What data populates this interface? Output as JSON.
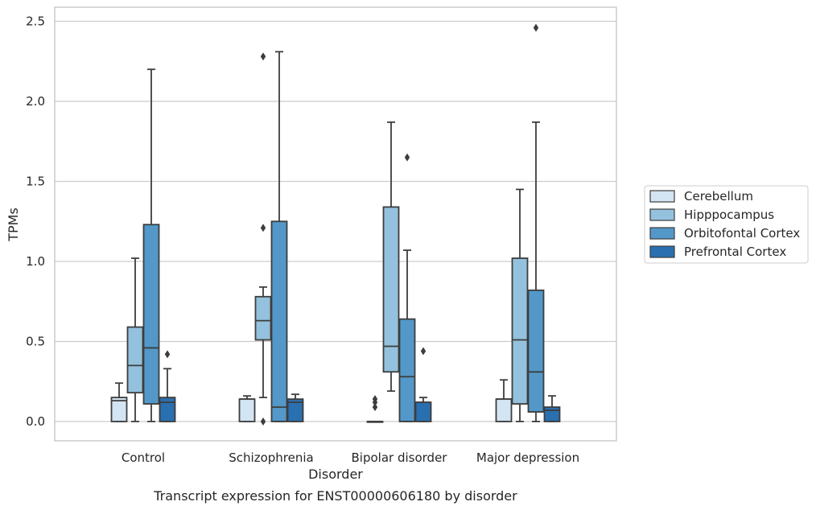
{
  "chart_data": {
    "type": "boxplot",
    "caption": "Transcript expression for ENST00000606180 by disorder",
    "xlabel": "Disorder",
    "ylabel": "TPMs",
    "ylim": [
      -0.12,
      2.59
    ],
    "yticks": [
      "0.0",
      "0.5",
      "1.0",
      "1.5",
      "2.0",
      "2.5"
    ],
    "categories": [
      "Control",
      "Schizophrenia",
      "Bipolar disorder",
      "Major depression"
    ],
    "grid": true,
    "legend_position": "right",
    "series": [
      {
        "name": "Cerebellum",
        "color": "#d3e4f3",
        "boxes": [
          {
            "q1": 0.0,
            "median": 0.13,
            "q3": 0.15,
            "whislo": 0.0,
            "whishi": 0.24,
            "fliers": []
          },
          {
            "q1": 0.0,
            "median": 0.14,
            "q3": 0.14,
            "whislo": 0.0,
            "whishi": 0.16,
            "fliers": []
          },
          {
            "q1": 0.0,
            "median": 0.0,
            "q3": 0.0,
            "whislo": 0.0,
            "whishi": 0.0,
            "fliers": [
              0.09,
              0.12,
              0.14
            ]
          },
          {
            "q1": 0.0,
            "median": 0.14,
            "q3": 0.14,
            "whislo": 0.0,
            "whishi": 0.26,
            "fliers": []
          }
        ]
      },
      {
        "name": "Hipppocampus",
        "color": "#94c1dd",
        "boxes": [
          {
            "q1": 0.18,
            "median": 0.35,
            "q3": 0.59,
            "whislo": 0.0,
            "whishi": 1.02,
            "fliers": []
          },
          {
            "q1": 0.51,
            "median": 0.63,
            "q3": 0.78,
            "whislo": 0.15,
            "whishi": 0.84,
            "fliers": [
              0.0,
              1.21,
              2.28
            ]
          },
          {
            "q1": 0.31,
            "median": 0.47,
            "q3": 1.34,
            "whislo": 0.19,
            "whishi": 1.87,
            "fliers": []
          },
          {
            "q1": 0.11,
            "median": 0.51,
            "q3": 1.02,
            "whislo": 0.0,
            "whishi": 1.45,
            "fliers": []
          }
        ]
      },
      {
        "name": "Orbitofontal Cortex",
        "color": "#5398c9",
        "boxes": [
          {
            "q1": 0.11,
            "median": 0.46,
            "q3": 1.23,
            "whislo": 0.0,
            "whishi": 2.2,
            "fliers": []
          },
          {
            "q1": 0.0,
            "median": 0.09,
            "q3": 1.25,
            "whislo": 0.0,
            "whishi": 2.31,
            "fliers": []
          },
          {
            "q1": 0.0,
            "median": 0.28,
            "q3": 0.64,
            "whislo": 0.0,
            "whishi": 1.07,
            "fliers": [
              1.65
            ]
          },
          {
            "q1": 0.06,
            "median": 0.31,
            "q3": 0.82,
            "whislo": 0.0,
            "whishi": 1.87,
            "fliers": [
              2.46
            ]
          }
        ]
      },
      {
        "name": "Prefrontal Cortex",
        "color": "#2a6faf",
        "boxes": [
          {
            "q1": 0.0,
            "median": 0.12,
            "q3": 0.15,
            "whislo": 0.0,
            "whishi": 0.33,
            "fliers": [
              0.42
            ]
          },
          {
            "q1": 0.0,
            "median": 0.12,
            "q3": 0.14,
            "whislo": 0.0,
            "whishi": 0.17,
            "fliers": []
          },
          {
            "q1": 0.0,
            "median": 0.12,
            "q3": 0.12,
            "whislo": 0.0,
            "whishi": 0.15,
            "fliers": [
              0.44
            ]
          },
          {
            "q1": 0.0,
            "median": 0.07,
            "q3": 0.09,
            "whislo": 0.0,
            "whishi": 0.16,
            "fliers": []
          }
        ]
      }
    ]
  }
}
